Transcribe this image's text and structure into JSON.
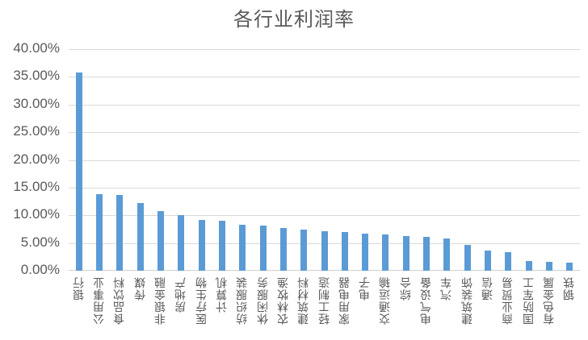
{
  "chart_data": {
    "type": "bar",
    "title": "各行业利润率",
    "xlabel": "",
    "ylabel": "",
    "ylim": [
      0,
      0.4
    ],
    "grid": true,
    "legend": null,
    "yticks": [
      "0.00%",
      "5.00%",
      "10.00%",
      "15.00%",
      "20.00%",
      "25.00%",
      "30.00%",
      "35.00%",
      "40.00%"
    ],
    "categories": [
      "银行",
      "公用事业",
      "食品饮料",
      "传媒",
      "非银金融",
      "房地产",
      "医疗生物",
      "计算机",
      "纺织服装",
      "休闲服务",
      "农林牧渔",
      "建筑材料",
      "轻工制造",
      "家用电器",
      "电子",
      "交通运输",
      "综合",
      "电气设备",
      "汽车",
      "建筑装饰",
      "通信",
      "商业贸易",
      "国防军工",
      "有色金属",
      "钢铁"
    ],
    "values": [
      0.358,
      0.138,
      0.137,
      0.122,
      0.107,
      0.1,
      0.091,
      0.09,
      0.083,
      0.082,
      0.077,
      0.074,
      0.071,
      0.07,
      0.067,
      0.066,
      0.063,
      0.061,
      0.058,
      0.046,
      0.037,
      0.033,
      0.018,
      0.016,
      0.015
    ],
    "bar_color": "#5b9bd5"
  }
}
